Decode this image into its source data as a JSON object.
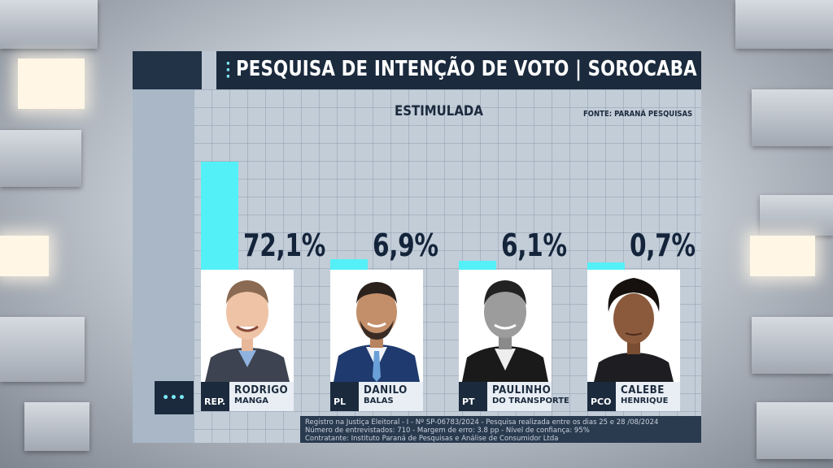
{
  "title": "PESQUISA DE INTENÇÃO DE VOTO | SOROCABA",
  "subtitle": "ESTIMULADA",
  "source": "FONTE: PARANÁ PESQUISAS",
  "menu_label": "•••",
  "colors": {
    "bar": "#54f0f7",
    "title_bar": "#1b2a3d",
    "text_dark": "#14243a"
  },
  "chart_data": {
    "type": "bar",
    "title": "PESQUISA DE INTENÇÃO DE VOTO | SOROCABA",
    "subtitle": "ESTIMULADA",
    "categories": [
      "RODRIGO MANGA",
      "DANILO BALAS",
      "PAULINHO DO TRANSPORTE",
      "CALEBE HENRIQUE"
    ],
    "values": [
      72.1,
      6.9,
      6.1,
      0.7
    ],
    "value_labels": [
      "72,1%",
      "6,9%",
      "6,1%",
      "0,7%"
    ],
    "unit": "%",
    "ylim": [
      0,
      72.1
    ],
    "grid": true,
    "legend": "none"
  },
  "candidates": [
    {
      "party": "REP.",
      "first": "RODRIGO",
      "last": "MANGA",
      "label": "72,1%"
    },
    {
      "party": "PL",
      "first": "DANILO",
      "last": "BALAS",
      "label": "6,9%"
    },
    {
      "party": "PT",
      "first": "PAULINHO",
      "last": "DO TRANSPORTE",
      "label": "6,1%"
    },
    {
      "party": "PCO",
      "first": "CALEBE",
      "last": "HENRIQUE",
      "label": "0,7%"
    }
  ],
  "footer": {
    "line1": "Registro na Justiça Eleitoral - I - Nº SP-06783/2024  - Pesquisa realizada entre os dias 25 e 28 /08/2024",
    "line2": "Número de entrevistados: 710 - Margem de erro: 3.8 pp - Nível de confiança: 95%",
    "line3": "Contratante: Instituto Paraná de Pesquisas e Análise de Consumidor Ltda"
  }
}
